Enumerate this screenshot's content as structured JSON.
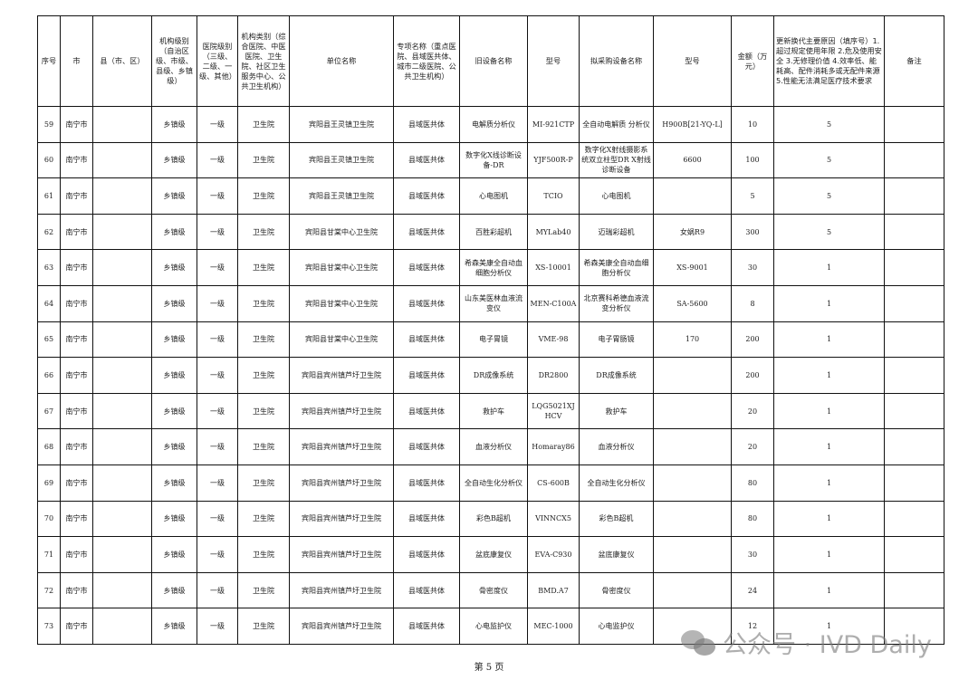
{
  "headers": [
    "序号",
    "市",
    "县（市、区）",
    "机构级别（自治区级、市级、县级、乡镇级）",
    "医院级别（三级、二级、一级、其他）",
    "机构类别（综合医院、中医医院、卫生院、社区卫生服务中心、公共卫生机构）",
    "单位名称",
    "专项名称（重点医院、县域医共体、城市二级医院、公共卫生机构）",
    "旧设备名称",
    "型号",
    "拟采购设备名称",
    "型号",
    "金额（万元）",
    "更新换代主要原因（填序号）1.超过规定使用年限 2.危及使用安全 3.无修理价值 4.效率低、能耗高、配件消耗多或无配件来源 5.性能无法满足医疗技术要求",
    "备注"
  ],
  "rows": [
    [
      "59",
      "南宁市",
      "",
      "乡镇级",
      "一级",
      "卫生院",
      "宾阳县王灵镇卫生院",
      "县域医共体",
      "电解质分析仪",
      "MI-921CTP",
      "全自动电解质 分析仪",
      "H900B[21-YQ-L]",
      "10",
      "5",
      ""
    ],
    [
      "60",
      "南宁市",
      "",
      "乡镇级",
      "一级",
      "卫生院",
      "宾阳县王灵镇卫生院",
      "县域医共体",
      "数字化X线诊断设备-DR",
      "YJF500R-P",
      "数字化X射线摄影系统双立柱型DR X射线诊断设备",
      "6600",
      "100",
      "5",
      ""
    ],
    [
      "61",
      "南宁市",
      "",
      "乡镇级",
      "一级",
      "卫生院",
      "宾阳县王灵镇卫生院",
      "县域医共体",
      "心电图机",
      "TCIO",
      "心电图机",
      "",
      "5",
      "5",
      ""
    ],
    [
      "62",
      "南宁市",
      "",
      "乡镇级",
      "一级",
      "卫生院",
      "宾阳县甘棠中心卫生院",
      "县域医共体",
      "百胜彩超机",
      "MYLab40",
      "迈瑞彩超机",
      "女娲R9",
      "300",
      "5",
      ""
    ],
    [
      "63",
      "南宁市",
      "",
      "乡镇级",
      "一级",
      "卫生院",
      "宾阳县甘棠中心卫生院",
      "县域医共体",
      "希森美康全自动血细胞分析仪",
      "XS-10001",
      "希森美康全自动血细胞分析仪",
      "XS-9001",
      "30",
      "1",
      ""
    ],
    [
      "64",
      "南宁市",
      "",
      "乡镇级",
      "一级",
      "卫生院",
      "宾阳县甘棠中心卫生院",
      "县域医共体",
      "山东美医林血液流变仪",
      "MEN-C100A",
      "北京赛科希德血液流变分析仪",
      "SA-5600",
      "8",
      "1",
      ""
    ],
    [
      "65",
      "南宁市",
      "",
      "乡镇级",
      "一级",
      "卫生院",
      "宾阳县甘棠中心卫生院",
      "县域医共体",
      "电子胃镜",
      "VME-98",
      "电子胃肠镜",
      "170",
      "200",
      "1",
      ""
    ],
    [
      "66",
      "南宁市",
      "",
      "乡镇级",
      "一级",
      "卫生院",
      "宾阳县宾州镇芦圩卫生院",
      "县域医共体",
      "DR成像系统",
      "DR2800",
      "DR成像系统",
      "",
      "200",
      "1",
      ""
    ],
    [
      "67",
      "南宁市",
      "",
      "乡镇级",
      "一级",
      "卫生院",
      "宾阳县宾州镇芦圩卫生院",
      "县域医共体",
      "救护车",
      "LQG5021XJHCV",
      "救护车",
      "",
      "20",
      "1",
      ""
    ],
    [
      "68",
      "南宁市",
      "",
      "乡镇级",
      "一级",
      "卫生院",
      "宾阳县宾州镇芦圩卫生院",
      "县域医共体",
      "血液分析仪",
      "Homaray86",
      "血液分析仪",
      "",
      "20",
      "1",
      ""
    ],
    [
      "69",
      "南宁市",
      "",
      "乡镇级",
      "一级",
      "卫生院",
      "宾阳县宾州镇芦圩卫生院",
      "县域医共体",
      "全自动生化分析仪",
      "CS-600B",
      "全自动生化分析仪",
      "",
      "80",
      "1",
      ""
    ],
    [
      "70",
      "南宁市",
      "",
      "乡镇级",
      "一级",
      "卫生院",
      "宾阳县宾州镇芦圩卫生院",
      "县域医共体",
      "彩色B超机",
      "VINNCX5",
      "彩色B超机",
      "",
      "80",
      "1",
      ""
    ],
    [
      "71",
      "南宁市",
      "",
      "乡镇级",
      "一级",
      "卫生院",
      "宾阳县宾州镇芦圩卫生院",
      "县域医共体",
      "盆底康复仪",
      "EVA-C930",
      "盆底康复仪",
      "",
      "30",
      "1",
      ""
    ],
    [
      "72",
      "南宁市",
      "",
      "乡镇级",
      "一级",
      "卫生院",
      "宾阳县宾州镇芦圩卫生院",
      "县域医共体",
      "骨密度仪",
      "BMD.A7",
      "骨密度仪",
      "",
      "24",
      "1",
      ""
    ],
    [
      "73",
      "南宁市",
      "",
      "乡镇级",
      "一级",
      "卫生院",
      "宾阳县宾州镇芦圩卫生院",
      "县域医共体",
      "心电监护仪",
      "MEC-1000",
      "心电监护仪",
      "",
      "12",
      "1",
      ""
    ]
  ],
  "footer": "第 5 页",
  "watermark": "公众号 · IVD Daily"
}
